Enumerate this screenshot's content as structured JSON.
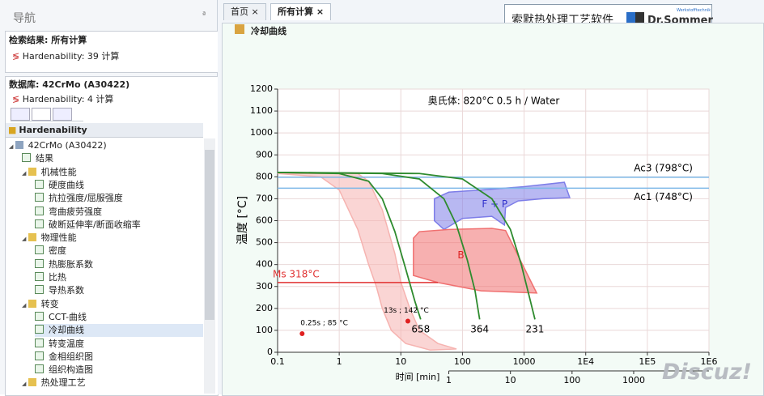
{
  "nav": {
    "title": "导航",
    "search": {
      "title": "检索结果: 所有计算",
      "item": "Hardenability: 39 计算"
    },
    "database": {
      "title": "数据库: 42CrMo (A30422)",
      "item": "Hardenability: 4 计算"
    },
    "tree_header": "Hardenability",
    "tree": [
      {
        "label": "42CrMo (A30422)",
        "level": 0
      },
      {
        "label": "结果",
        "level": 1
      },
      {
        "label": "机械性能",
        "level": 1,
        "folder": true
      },
      {
        "label": "硬度曲线",
        "level": 2
      },
      {
        "label": "抗拉强度/屈服强度",
        "level": 2
      },
      {
        "label": "弯曲疲劳强度",
        "level": 2
      },
      {
        "label": "破断延伸率/断面收缩率",
        "level": 2
      },
      {
        "label": "物理性能",
        "level": 1,
        "folder": true
      },
      {
        "label": "密度",
        "level": 2
      },
      {
        "label": "热膨胀系数",
        "level": 2
      },
      {
        "label": "比热",
        "level": 2
      },
      {
        "label": "导热系数",
        "level": 2
      },
      {
        "label": "转变",
        "level": 1,
        "folder": true
      },
      {
        "label": "CCT-曲线",
        "level": 2
      },
      {
        "label": "冷却曲线",
        "level": 2,
        "selected": true
      },
      {
        "label": "转变温度",
        "level": 2
      },
      {
        "label": "金相组织图",
        "level": 2
      },
      {
        "label": "组织构造图",
        "level": 2
      },
      {
        "label": "热处理工艺",
        "level": 1,
        "folder": true
      }
    ]
  },
  "tabs": [
    {
      "label": "首页"
    },
    {
      "label": "所有计算",
      "active": true
    }
  ],
  "brand": {
    "title": "索默热处理工艺软件",
    "logo": "Dr.Sommer",
    "logo_small": "Werkstofftechnik"
  },
  "section_title": "冷却曲线",
  "watermark": "Discuz!",
  "chart_data": {
    "type": "line",
    "annotation": "奥氏体: 820°C 0.5 h / Water",
    "x_label": "时间 [min]",
    "y_label": "温度 [°C]",
    "xscale": "log",
    "xlim": [
      0.1,
      1000000
    ],
    "xticks": [
      0.1,
      1,
      10,
      100,
      1000,
      {
        "value": 10000,
        "label": "1E4"
      },
      {
        "value": 100000,
        "label": "1E5"
      },
      {
        "value": 1000000,
        "label": "1E6"
      }
    ],
    "x2scale": "log",
    "x2lim": [
      0.0016667,
      16666.7
    ],
    "x2ticks": [
      1,
      10,
      100,
      1000
    ],
    "ylim": [
      0,
      1200
    ],
    "yticks": [
      0,
      100,
      200,
      300,
      400,
      500,
      600,
      700,
      800,
      900,
      1000,
      1100,
      1200
    ],
    "grid": true,
    "hlines": [
      {
        "value": 798,
        "label": "Ac3 (798°C)",
        "color": "#7db8e8"
      },
      {
        "value": 748,
        "label": "Ac1 (748°C)",
        "color": "#7db8e8"
      }
    ],
    "ms": {
      "value": 318,
      "label": "Ms 318°C",
      "color": "#e03030",
      "xlim": [
        0.1,
        40
      ]
    },
    "regions": [
      {
        "color": "#f6b3b0",
        "x": [
          0.1,
          0.5,
          1,
          2,
          3,
          4,
          5,
          7,
          12,
          30,
          80,
          40,
          20,
          14,
          10,
          8,
          5,
          3,
          2
        ],
        "y": [
          815,
          800,
          740,
          560,
          400,
          300,
          200,
          100,
          40,
          10,
          15,
          40,
          100,
          200,
          320,
          450,
          650,
          780,
          815
        ]
      },
      {
        "label": "F + P",
        "color": "#7d7de8",
        "x": [
          35,
          60,
          200,
          1000,
          4500,
          5500,
          2000,
          800,
          500,
          480,
          300,
          100,
          50,
          35
        ],
        "y": [
          700,
          730,
          740,
          755,
          775,
          705,
          700,
          690,
          660,
          580,
          620,
          610,
          560,
          600
        ]
      },
      {
        "label": "B",
        "color": "#f07070",
        "x": [
          16,
          20,
          60,
          300,
          500,
          1600,
          200,
          40,
          16
        ],
        "y": [
          520,
          550,
          560,
          565,
          555,
          270,
          280,
          318,
          350
        ]
      }
    ],
    "series": [
      {
        "color": "#2e8b2e",
        "end_label": "658",
        "x": [
          0.1,
          1,
          3,
          5,
          8,
          12,
          17,
          21
        ],
        "values": [
          820,
          815,
          780,
          700,
          550,
          380,
          230,
          150
        ]
      },
      {
        "color": "#2e8b2e",
        "end_label": "364",
        "x": [
          0.1,
          5,
          20,
          50,
          80,
          120,
          160,
          190
        ],
        "values": [
          820,
          815,
          790,
          700,
          580,
          420,
          280,
          150
        ]
      },
      {
        "color": "#2e8b2e",
        "end_label": "231",
        "x": [
          0.1,
          20,
          100,
          300,
          600,
          900,
          1200,
          1500
        ],
        "values": [
          820,
          815,
          790,
          700,
          560,
          400,
          260,
          150
        ]
      }
    ],
    "points": [
      {
        "x": 0.25,
        "y": 85,
        "label": "0.25s ; 85 °C",
        "color": "#e02020"
      },
      {
        "x": 13,
        "y": 142,
        "label": "13s ; 142 °C",
        "color": "#e02020"
      }
    ]
  }
}
